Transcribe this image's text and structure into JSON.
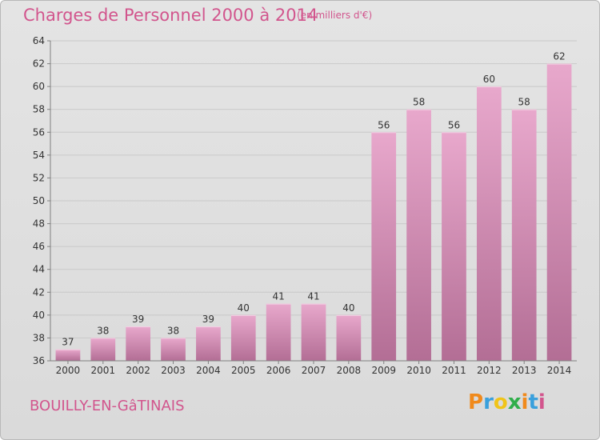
{
  "header": {
    "title": "Charges de Personnel 2000 à 2014",
    "subtitle": "(en milliers d'€)"
  },
  "footer": {
    "commune": "BOUILLY-EN-GâTINAIS",
    "logo_text": "Proxiti"
  },
  "colors": {
    "title": "#d2558d",
    "bar_top": "#e8a8cc",
    "bar_bottom": "#b36e95",
    "axis": "#808080",
    "grid": "#c9c9c9",
    "logo": [
      "#f08a1c",
      "#3aa0dc",
      "#f0c419",
      "#2fae4a",
      "#f08a1c",
      "#3aa0dc",
      "#d2558d"
    ]
  },
  "chart_data": {
    "type": "bar",
    "title": "Charges de Personnel 2000 à 2014",
    "subtitle": "(en milliers d'€)",
    "xlabel": "",
    "ylabel": "",
    "categories": [
      "2000",
      "2001",
      "2002",
      "2003",
      "2004",
      "2005",
      "2006",
      "2007",
      "2008",
      "2009",
      "2010",
      "2011",
      "2012",
      "2013",
      "2014"
    ],
    "values": [
      37,
      38,
      39,
      38,
      39,
      40,
      41,
      41,
      40,
      56,
      58,
      56,
      60,
      58,
      62
    ],
    "ylim": [
      36,
      64
    ],
    "yticks": [
      36,
      38,
      40,
      42,
      44,
      46,
      48,
      50,
      52,
      54,
      56,
      58,
      60,
      62,
      64
    ],
    "grid": true,
    "legend": "none"
  }
}
